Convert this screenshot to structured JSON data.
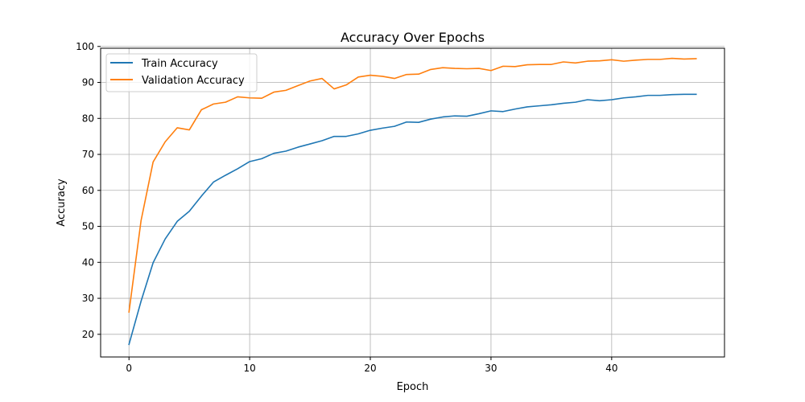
{
  "chart_data": {
    "type": "line",
    "title": "Accuracy Over Epochs",
    "xlabel": "Epoch",
    "ylabel": "Accuracy",
    "xlim": [
      -2.35,
      49.35
    ],
    "ylim": [
      13.7,
      99.5
    ],
    "xticks": [
      0,
      10,
      20,
      30,
      40
    ],
    "yticks": [
      20,
      30,
      40,
      50,
      60,
      70,
      80,
      90,
      100
    ],
    "grid": true,
    "legend": "upper left",
    "x": [
      0,
      1,
      2,
      3,
      4,
      5,
      6,
      7,
      8,
      9,
      10,
      11,
      12,
      13,
      14,
      15,
      16,
      17,
      18,
      19,
      20,
      21,
      22,
      23,
      24,
      25,
      26,
      27,
      28,
      29,
      30,
      31,
      32,
      33,
      34,
      35,
      36,
      37,
      38,
      39,
      40,
      41,
      42,
      43,
      44,
      45,
      46,
      47
    ],
    "series": [
      {
        "name": "Train Accuracy",
        "color": "#1f77b4",
        "values": [
          17.2,
          29.2,
          39.9,
          46.5,
          51.4,
          54.2,
          58.4,
          62.3,
          64.2,
          66.0,
          68.0,
          68.8,
          70.3,
          70.9,
          72.0,
          72.9,
          73.8,
          75.0,
          75.0,
          75.7,
          76.7,
          77.3,
          77.8,
          79.0,
          78.9,
          79.8,
          80.4,
          80.7,
          80.6,
          81.3,
          82.1,
          81.9,
          82.6,
          83.2,
          83.5,
          83.8,
          84.2,
          84.5,
          85.2,
          84.9,
          85.2,
          85.7,
          86.0,
          86.4,
          86.4,
          86.6,
          86.7,
          86.7
        ]
      },
      {
        "name": "Validation Accuracy",
        "color": "#ff7f0e",
        "values": [
          26.2,
          51.6,
          67.9,
          73.5,
          77.4,
          76.8,
          82.4,
          84.0,
          84.5,
          86.0,
          85.7,
          85.6,
          87.3,
          87.8,
          89.1,
          90.4,
          91.1,
          88.2,
          89.3,
          91.5,
          92.0,
          91.7,
          91.1,
          92.2,
          92.3,
          93.6,
          94.1,
          93.9,
          93.8,
          93.9,
          93.3,
          94.5,
          94.4,
          94.9,
          95.0,
          95.0,
          95.7,
          95.4,
          95.9,
          96.0,
          96.3,
          95.9,
          96.2,
          96.4,
          96.4,
          96.7,
          96.5,
          96.6
        ]
      }
    ]
  }
}
